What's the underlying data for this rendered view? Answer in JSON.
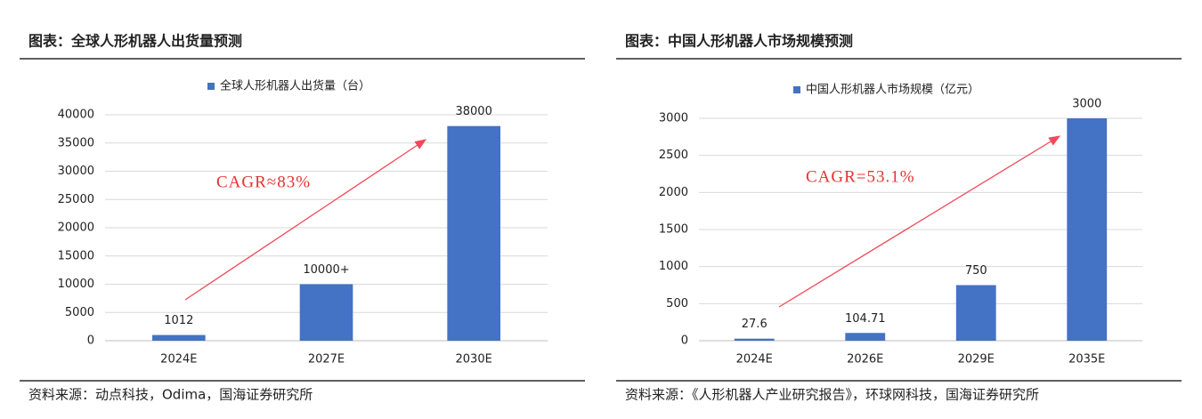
{
  "chart_data": [
    {
      "type": "bar",
      "title": "图表：全球人形机器人出货量预测",
      "categories": [
        "2024E",
        "2027E",
        "2030E"
      ],
      "series": [
        {
          "name": "全球人形机器人出货量（台）",
          "color": "#4472c4",
          "values": [
            1012,
            10000,
            38000
          ],
          "value_labels": [
            "1012",
            "10000+",
            "38000"
          ]
        }
      ],
      "ylim": [
        0,
        40000
      ],
      "yticks": [
        0,
        5000,
        10000,
        15000,
        20000,
        25000,
        30000,
        35000,
        40000
      ],
      "grid": true,
      "annotation": "CAGR≈83%",
      "source": "资料来源：动点科技，Odima，国海证券研究所"
    },
    {
      "type": "bar",
      "title": "图表：中国人形机器人市场规模预测",
      "categories": [
        "2024E",
        "2026E",
        "2029E",
        "2035E"
      ],
      "series": [
        {
          "name": "中国人形机器人市场规模（亿元）",
          "color": "#4472c4",
          "values": [
            27.6,
            104.71,
            750,
            3000
          ]
        }
      ],
      "ylim": [
        0,
        3000
      ],
      "yticks": [
        0,
        500,
        1000,
        1500,
        2000,
        2500,
        3000
      ],
      "grid": true,
      "annotation": "CAGR=53.1%",
      "source": "资料来源：《人形机器人产业研究报告》，环球网科技，国海证券研究所"
    }
  ]
}
